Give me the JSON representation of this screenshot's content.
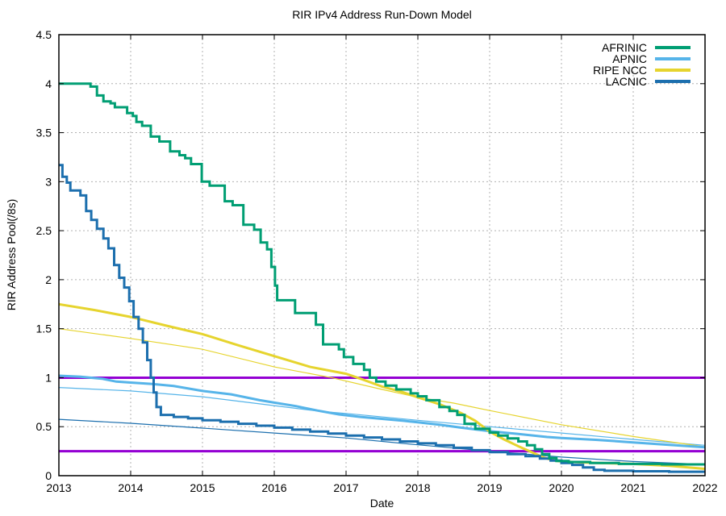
{
  "chart_data": {
    "type": "line",
    "title": "RIR IPv4 Address Run-Down Model",
    "xlabel": "Date",
    "ylabel": "RIR Address Pool(/8s)",
    "xlim": [
      2013,
      2022
    ],
    "ylim": [
      0,
      4.5
    ],
    "xticks": [
      "2013",
      "2014",
      "2015",
      "2016",
      "2017",
      "2018",
      "2019",
      "2020",
      "2021",
      "2022"
    ],
    "yticks": [
      "0",
      "0.5",
      "1",
      "1.5",
      "2",
      "2.5",
      "3",
      "3.5",
      "4",
      "4.5"
    ],
    "grid": true,
    "legend_position": "top-right-inside",
    "colors": {
      "afrinic": "#009e73",
      "apnic": "#56b4e9",
      "ripencc": "#e6d42e",
      "lacnic": "#1c6fae",
      "threshold": "#9400d3",
      "grid": "#b0b0b0",
      "axis": "#000000"
    },
    "legend_entries": [
      {
        "label": "AFRINIC",
        "color": "#009e73"
      },
      {
        "label": "APNIC",
        "color": "#56b4e9"
      },
      {
        "label": "RIPE NCC",
        "color": "#e6d42e"
      },
      {
        "label": "LACNIC",
        "color": "#1c6fae"
      }
    ],
    "thresholds": [
      {
        "y": 1.0,
        "color": "#9400d3",
        "width": 3
      },
      {
        "y": 0.25,
        "color": "#9400d3",
        "width": 3
      }
    ],
    "series": [
      {
        "name": "APNIC projection",
        "color": "#56b4e9",
        "width": 1.2,
        "step": false,
        "in_legend": false,
        "points": [
          [
            2013.0,
            0.9
          ],
          [
            2014.0,
            0.865
          ],
          [
            2015.0,
            0.805
          ],
          [
            2016.0,
            0.715
          ],
          [
            2016.6,
            0.66
          ],
          [
            2017.0,
            0.635
          ],
          [
            2018.0,
            0.565
          ],
          [
            2019.0,
            0.5
          ],
          [
            2020.0,
            0.435
          ],
          [
            2021.0,
            0.37
          ],
          [
            2022.0,
            0.31
          ]
        ]
      },
      {
        "name": "RIPE NCC projection",
        "color": "#e6d42e",
        "width": 1.2,
        "step": false,
        "in_legend": false,
        "points": [
          [
            2013.0,
            1.5
          ],
          [
            2014.0,
            1.4
          ],
          [
            2015.0,
            1.29
          ],
          [
            2016.0,
            1.11
          ],
          [
            2016.8,
            1.0
          ],
          [
            2017.5,
            0.88
          ],
          [
            2018.0,
            0.8
          ],
          [
            2018.5,
            0.74
          ],
          [
            2019.0,
            0.665
          ],
          [
            2020.0,
            0.52
          ],
          [
            2021.0,
            0.4
          ],
          [
            2022.0,
            0.295
          ]
        ]
      },
      {
        "name": "LACNIC projection",
        "color": "#1c6fae",
        "width": 1.2,
        "step": false,
        "in_legend": false,
        "points": [
          [
            2013.0,
            0.575
          ],
          [
            2014.0,
            0.535
          ],
          [
            2015.0,
            0.485
          ],
          [
            2016.0,
            0.435
          ],
          [
            2017.0,
            0.385
          ],
          [
            2018.0,
            0.315
          ],
          [
            2019.0,
            0.25
          ],
          [
            2020.0,
            0.19
          ],
          [
            2021.0,
            0.145
          ],
          [
            2022.0,
            0.115
          ]
        ]
      },
      {
        "name": "APNIC",
        "color": "#56b4e9",
        "width": 3,
        "step": false,
        "in_legend": true,
        "points": [
          [
            2013.0,
            1.02
          ],
          [
            2013.3,
            1.01
          ],
          [
            2013.6,
            0.99
          ],
          [
            2013.8,
            0.96
          ],
          [
            2014.0,
            0.95
          ],
          [
            2014.3,
            0.935
          ],
          [
            2014.6,
            0.915
          ],
          [
            2015.0,
            0.865
          ],
          [
            2015.4,
            0.83
          ],
          [
            2015.8,
            0.77
          ],
          [
            2016.0,
            0.745
          ],
          [
            2016.3,
            0.71
          ],
          [
            2016.6,
            0.665
          ],
          [
            2016.9,
            0.625
          ],
          [
            2017.2,
            0.6
          ],
          [
            2017.5,
            0.58
          ],
          [
            2017.8,
            0.56
          ],
          [
            2018.0,
            0.545
          ],
          [
            2018.3,
            0.52
          ],
          [
            2018.6,
            0.49
          ],
          [
            2019.0,
            0.455
          ],
          [
            2019.4,
            0.425
          ],
          [
            2019.8,
            0.395
          ],
          [
            2020.0,
            0.385
          ],
          [
            2020.5,
            0.365
          ],
          [
            2021.0,
            0.34
          ],
          [
            2021.5,
            0.315
          ],
          [
            2022.0,
            0.29
          ]
        ]
      },
      {
        "name": "RIPE NCC",
        "color": "#e6d42e",
        "width": 3,
        "step": false,
        "in_legend": true,
        "points": [
          [
            2013.0,
            1.75
          ],
          [
            2013.5,
            1.69
          ],
          [
            2014.0,
            1.62
          ],
          [
            2014.5,
            1.53
          ],
          [
            2015.0,
            1.445
          ],
          [
            2015.5,
            1.33
          ],
          [
            2016.0,
            1.22
          ],
          [
            2016.5,
            1.11
          ],
          [
            2017.0,
            1.04
          ],
          [
            2017.2,
            0.99
          ],
          [
            2017.5,
            0.91
          ],
          [
            2017.8,
            0.85
          ],
          [
            2018.0,
            0.8
          ],
          [
            2018.3,
            0.73
          ],
          [
            2018.6,
            0.64
          ],
          [
            2018.8,
            0.56
          ],
          [
            2019.0,
            0.45
          ],
          [
            2019.2,
            0.37
          ],
          [
            2019.4,
            0.3
          ],
          [
            2019.6,
            0.235
          ],
          [
            2019.75,
            0.185
          ],
          [
            2019.9,
            0.155
          ],
          [
            2020.0,
            0.145
          ],
          [
            2020.5,
            0.13
          ],
          [
            2021.0,
            0.12
          ],
          [
            2021.5,
            0.1
          ],
          [
            2022.0,
            0.07
          ]
        ]
      },
      {
        "name": "LACNIC",
        "color": "#1c6fae",
        "width": 3,
        "step": true,
        "in_legend": true,
        "points": [
          [
            2013.0,
            3.17
          ],
          [
            2013.05,
            3.05
          ],
          [
            2013.11,
            2.99
          ],
          [
            2013.16,
            2.91
          ],
          [
            2013.3,
            2.86
          ],
          [
            2013.38,
            2.7
          ],
          [
            2013.45,
            2.61
          ],
          [
            2013.53,
            2.52
          ],
          [
            2013.62,
            2.42
          ],
          [
            2013.69,
            2.32
          ],
          [
            2013.77,
            2.15
          ],
          [
            2013.84,
            2.02
          ],
          [
            2013.91,
            1.92
          ],
          [
            2013.98,
            1.78
          ],
          [
            2014.04,
            1.62
          ],
          [
            2014.11,
            1.5
          ],
          [
            2014.17,
            1.36
          ],
          [
            2014.23,
            1.18
          ],
          [
            2014.28,
            1.0
          ],
          [
            2014.32,
            0.85
          ],
          [
            2014.36,
            0.7
          ],
          [
            2014.42,
            0.62
          ],
          [
            2014.6,
            0.6
          ],
          [
            2014.8,
            0.585
          ],
          [
            2015.0,
            0.565
          ],
          [
            2015.25,
            0.55
          ],
          [
            2015.5,
            0.53
          ],
          [
            2015.75,
            0.51
          ],
          [
            2016.0,
            0.49
          ],
          [
            2016.25,
            0.47
          ],
          [
            2016.5,
            0.45
          ],
          [
            2016.75,
            0.43
          ],
          [
            2017.0,
            0.41
          ],
          [
            2017.25,
            0.39
          ],
          [
            2017.5,
            0.37
          ],
          [
            2017.75,
            0.35
          ],
          [
            2018.0,
            0.33
          ],
          [
            2018.25,
            0.31
          ],
          [
            2018.5,
            0.285
          ],
          [
            2018.75,
            0.26
          ],
          [
            2019.0,
            0.24
          ],
          [
            2019.25,
            0.22
          ],
          [
            2019.5,
            0.2
          ],
          [
            2019.7,
            0.175
          ],
          [
            2019.85,
            0.155
          ],
          [
            2020.0,
            0.13
          ],
          [
            2020.15,
            0.11
          ],
          [
            2020.3,
            0.085
          ],
          [
            2020.45,
            0.06
          ],
          [
            2020.6,
            0.05
          ],
          [
            2021.0,
            0.045
          ],
          [
            2021.5,
            0.04
          ],
          [
            2022.0,
            0.03
          ]
        ]
      },
      {
        "name": "AFRINIC",
        "color": "#009e73",
        "width": 3,
        "step": true,
        "in_legend": true,
        "points": [
          [
            2013.0,
            4.0
          ],
          [
            2013.44,
            3.97
          ],
          [
            2013.53,
            3.88
          ],
          [
            2013.62,
            3.82
          ],
          [
            2013.72,
            3.8
          ],
          [
            2013.78,
            3.76
          ],
          [
            2013.95,
            3.7
          ],
          [
            2014.03,
            3.67
          ],
          [
            2014.08,
            3.61
          ],
          [
            2014.16,
            3.57
          ],
          [
            2014.28,
            3.46
          ],
          [
            2014.4,
            3.41
          ],
          [
            2014.55,
            3.31
          ],
          [
            2014.68,
            3.27
          ],
          [
            2014.76,
            3.24
          ],
          [
            2014.84,
            3.18
          ],
          [
            2014.99,
            3.0
          ],
          [
            2015.1,
            2.96
          ],
          [
            2015.31,
            2.8
          ],
          [
            2015.42,
            2.76
          ],
          [
            2015.57,
            2.56
          ],
          [
            2015.72,
            2.51
          ],
          [
            2015.81,
            2.38
          ],
          [
            2015.9,
            2.31
          ],
          [
            2015.96,
            2.13
          ],
          [
            2016.01,
            1.94
          ],
          [
            2016.04,
            1.79
          ],
          [
            2016.29,
            1.66
          ],
          [
            2016.58,
            1.54
          ],
          [
            2016.68,
            1.34
          ],
          [
            2016.9,
            1.29
          ],
          [
            2016.97,
            1.21
          ],
          [
            2017.1,
            1.14
          ],
          [
            2017.25,
            1.08
          ],
          [
            2017.33,
            1.0
          ],
          [
            2017.42,
            0.96
          ],
          [
            2017.55,
            0.92
          ],
          [
            2017.7,
            0.88
          ],
          [
            2017.9,
            0.84
          ],
          [
            2018.0,
            0.81
          ],
          [
            2018.12,
            0.77
          ],
          [
            2018.3,
            0.7
          ],
          [
            2018.44,
            0.66
          ],
          [
            2018.55,
            0.62
          ],
          [
            2018.65,
            0.53
          ],
          [
            2018.8,
            0.48
          ],
          [
            2019.0,
            0.44
          ],
          [
            2019.12,
            0.41
          ],
          [
            2019.25,
            0.38
          ],
          [
            2019.4,
            0.35
          ],
          [
            2019.52,
            0.31
          ],
          [
            2019.63,
            0.27
          ],
          [
            2019.73,
            0.22
          ],
          [
            2019.83,
            0.18
          ],
          [
            2019.93,
            0.15
          ],
          [
            2020.1,
            0.14
          ],
          [
            2020.4,
            0.13
          ],
          [
            2020.8,
            0.12
          ],
          [
            2021.4,
            0.115
          ],
          [
            2022.0,
            0.105
          ]
        ]
      }
    ]
  }
}
